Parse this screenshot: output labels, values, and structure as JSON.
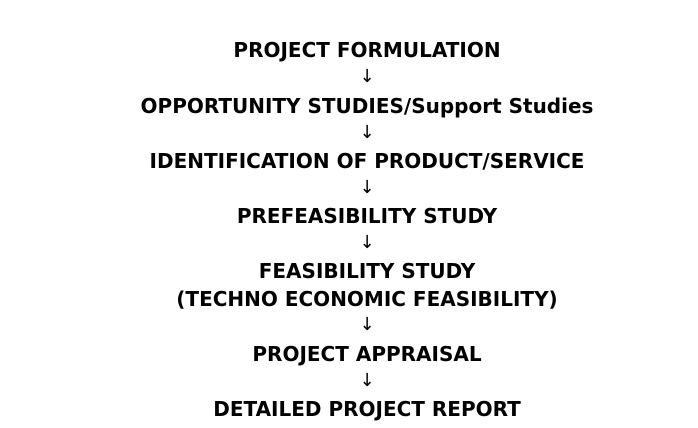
{
  "steps": [
    "PROJECT FORMULATION",
    "OPPORTUNITY STUDIES/Support Studies",
    "IDENTIFICATION OF PRODUCT/SERVICE",
    "PREFEASIBILITY STUDY",
    "FEASIBILITY STUDY",
    "(TECHNO ECONOMIC FEASIBILITY)",
    "PROJECT APPRAISAL",
    "DETAILED PROJECT REPORT"
  ],
  "arrow_glyph": "↓"
}
